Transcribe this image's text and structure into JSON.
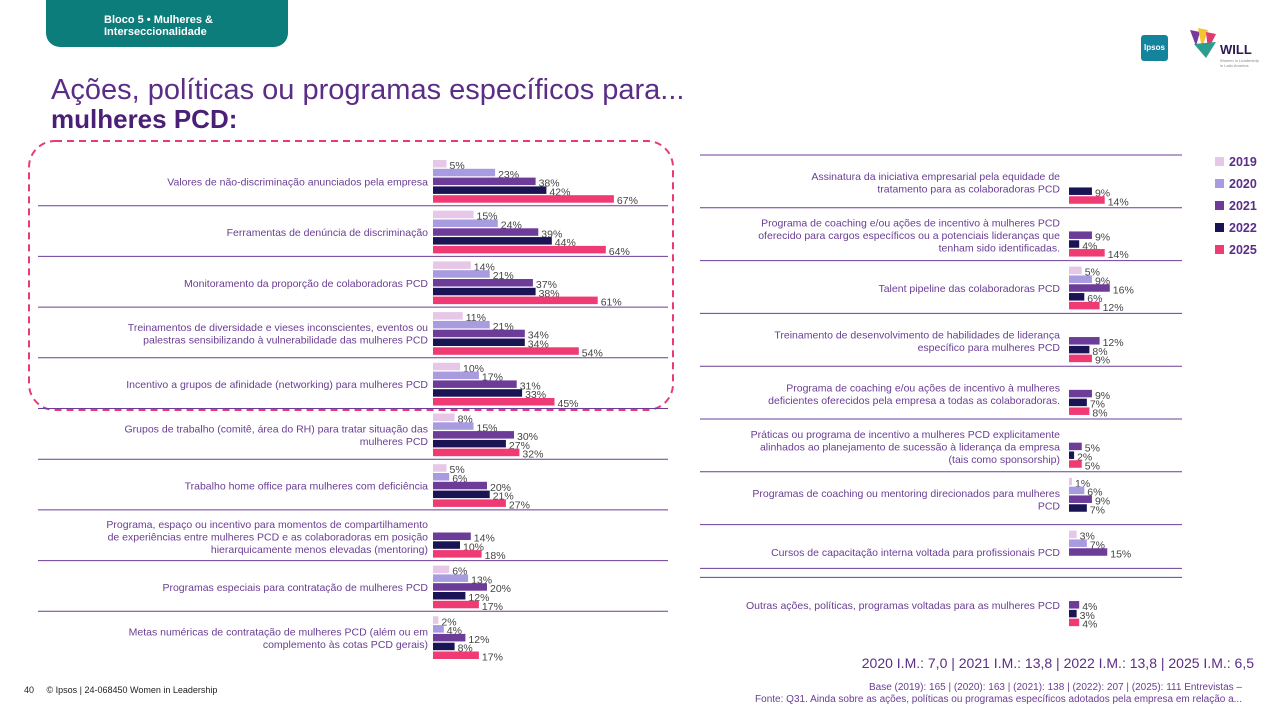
{
  "header": {
    "tab_line1": "Bloco 5 • Mulheres &",
    "tab_line2": "Interseccionalidade",
    "title_line1": "Ações, políticas ou programas específicos para...",
    "title_line2": "mulheres PCD:",
    "ipsos_logo": "Ipsos",
    "will_logo": "WILL",
    "will_tagline": "Women in Leadership in Latin America"
  },
  "legend_items": [
    {
      "label": "2019",
      "color": "#e6c7e8"
    },
    {
      "label": "2020",
      "color": "#a89be0"
    },
    {
      "label": "2021",
      "color": "#6c3c98"
    },
    {
      "label": "2022",
      "color": "#1b1454"
    },
    {
      "label": "2025",
      "color": "#ef3a73"
    }
  ],
  "chart_data": [
    {
      "type": "bar",
      "orientation": "horizontal",
      "unit": "%",
      "series_names": [
        "2019",
        "2020",
        "2021",
        "2022",
        "2025"
      ],
      "highlight_label": "top five items highlighted with dashed frame",
      "categories": [
        {
          "label": [
            "Valores de não-discriminação anunciados pela empresa"
          ],
          "values": [
            5,
            23,
            38,
            42,
            67
          ]
        },
        {
          "label": [
            "Ferramentas de denúncia de discriminação"
          ],
          "values": [
            15,
            24,
            39,
            44,
            64
          ]
        },
        {
          "label": [
            "Monitoramento da proporção de colaboradoras PCD"
          ],
          "values": [
            14,
            21,
            37,
            38,
            61
          ]
        },
        {
          "label": [
            "Treinamentos de diversidade e vieses inconscientes, eventos ou",
            "palestras sensibilizando à vulnerabilidade das mulheres PCD"
          ],
          "values": [
            11,
            21,
            34,
            34,
            54
          ]
        },
        {
          "label": [
            "Incentivo a grupos de afinidade (networking) para mulheres PCD"
          ],
          "values": [
            10,
            17,
            31,
            33,
            45
          ]
        },
        {
          "label": [
            "Grupos de trabalho (comitê, área do RH) para tratar situação das",
            "mulheres PCD"
          ],
          "values": [
            8,
            15,
            30,
            27,
            32
          ]
        },
        {
          "label": [
            "Trabalho home office para mulheres com deficiência"
          ],
          "values": [
            5,
            6,
            20,
            21,
            27
          ]
        },
        {
          "label": [
            "Programa, espaço ou incentivo para momentos de compartilhamento",
            "de experiências entre mulheres PCD e as colaboradoras em posição",
            "hierarquicamente menos elevadas (mentoring)"
          ],
          "values": [
            null,
            null,
            14,
            10,
            18
          ]
        },
        {
          "label": [
            "Programas especiais para contratação de mulheres PCD"
          ],
          "values": [
            6,
            13,
            20,
            12,
            17
          ]
        },
        {
          "label": [
            "Metas numéricas de contratação de mulheres PCD (além ou em",
            "complemento às cotas PCD gerais)"
          ],
          "values": [
            2,
            4,
            12,
            8,
            17
          ]
        }
      ]
    },
    {
      "type": "bar",
      "orientation": "horizontal",
      "unit": "%",
      "series_names": [
        "2019",
        "2020",
        "2021",
        "2022",
        "2025"
      ],
      "categories": [
        {
          "label": [
            "Assinatura da iniciativa empresarial pela equidade de",
            "tratamento para as colaboradoras PCD"
          ],
          "values": [
            null,
            null,
            null,
            9,
            14
          ]
        },
        {
          "label": [
            "Programa de coaching e/ou ações de incentivo à mulheres PCD",
            "oferecido para cargos específicos ou a potenciais lideranças que",
            "tenham sido identificadas."
          ],
          "values": [
            null,
            null,
            9,
            4,
            14
          ]
        },
        {
          "label": [
            "Talent pipeline das colaboradoras PCD"
          ],
          "values": [
            5,
            9,
            16,
            6,
            12
          ]
        },
        {
          "label": [
            "Treinamento de desenvolvimento de habilidades de liderança",
            "específico para mulheres PCD"
          ],
          "values": [
            null,
            null,
            12,
            8,
            9
          ]
        },
        {
          "label": [
            "Programa de coaching e/ou ações de incentivo à mulheres",
            "deficientes oferecidos pela empresa a todas as colaboradoras."
          ],
          "values": [
            null,
            null,
            9,
            7,
            8
          ]
        },
        {
          "label": [
            "Práticas ou programa de incentivo a mulheres PCD explicitamente",
            "alinhados ao planejamento de sucessão à liderança da empresa",
            "(tais como sponsorship)"
          ],
          "values": [
            null,
            null,
            5,
            2,
            5
          ]
        },
        {
          "label": [
            "Programas de coaching ou mentoring direcionados para mulheres",
            "PCD"
          ],
          "values": [
            1,
            6,
            9,
            7,
            null
          ]
        },
        {
          "label": [
            "Cursos de capacitação interna voltada para profissionais PCD"
          ],
          "values": [
            3,
            7,
            15,
            null,
            null
          ]
        },
        {
          "label": [
            "Outras ações, políticas, programas voltadas para as mulheres PCD"
          ],
          "values": [
            null,
            null,
            4,
            3,
            4
          ]
        }
      ]
    }
  ],
  "footer": {
    "im_summary": "2020 I.M.: 7,0 | 2021 I.M.: 13,8 | 2022 I.M.: 13,8 | 2025 I.M.: 6,5",
    "base_note": "Base (2019): 165 | (2020): 163 | (2021): 138 | (2022): 207 | (2025): 111 Entrevistas –",
    "source_note": "Fonte: Q31. Ainda sobre as ações, políticas ou programas específicos adotados pela empresa em relação a...",
    "page_number": "40",
    "copyright": "© Ipsos | 24-068450 Women in Leadership"
  }
}
